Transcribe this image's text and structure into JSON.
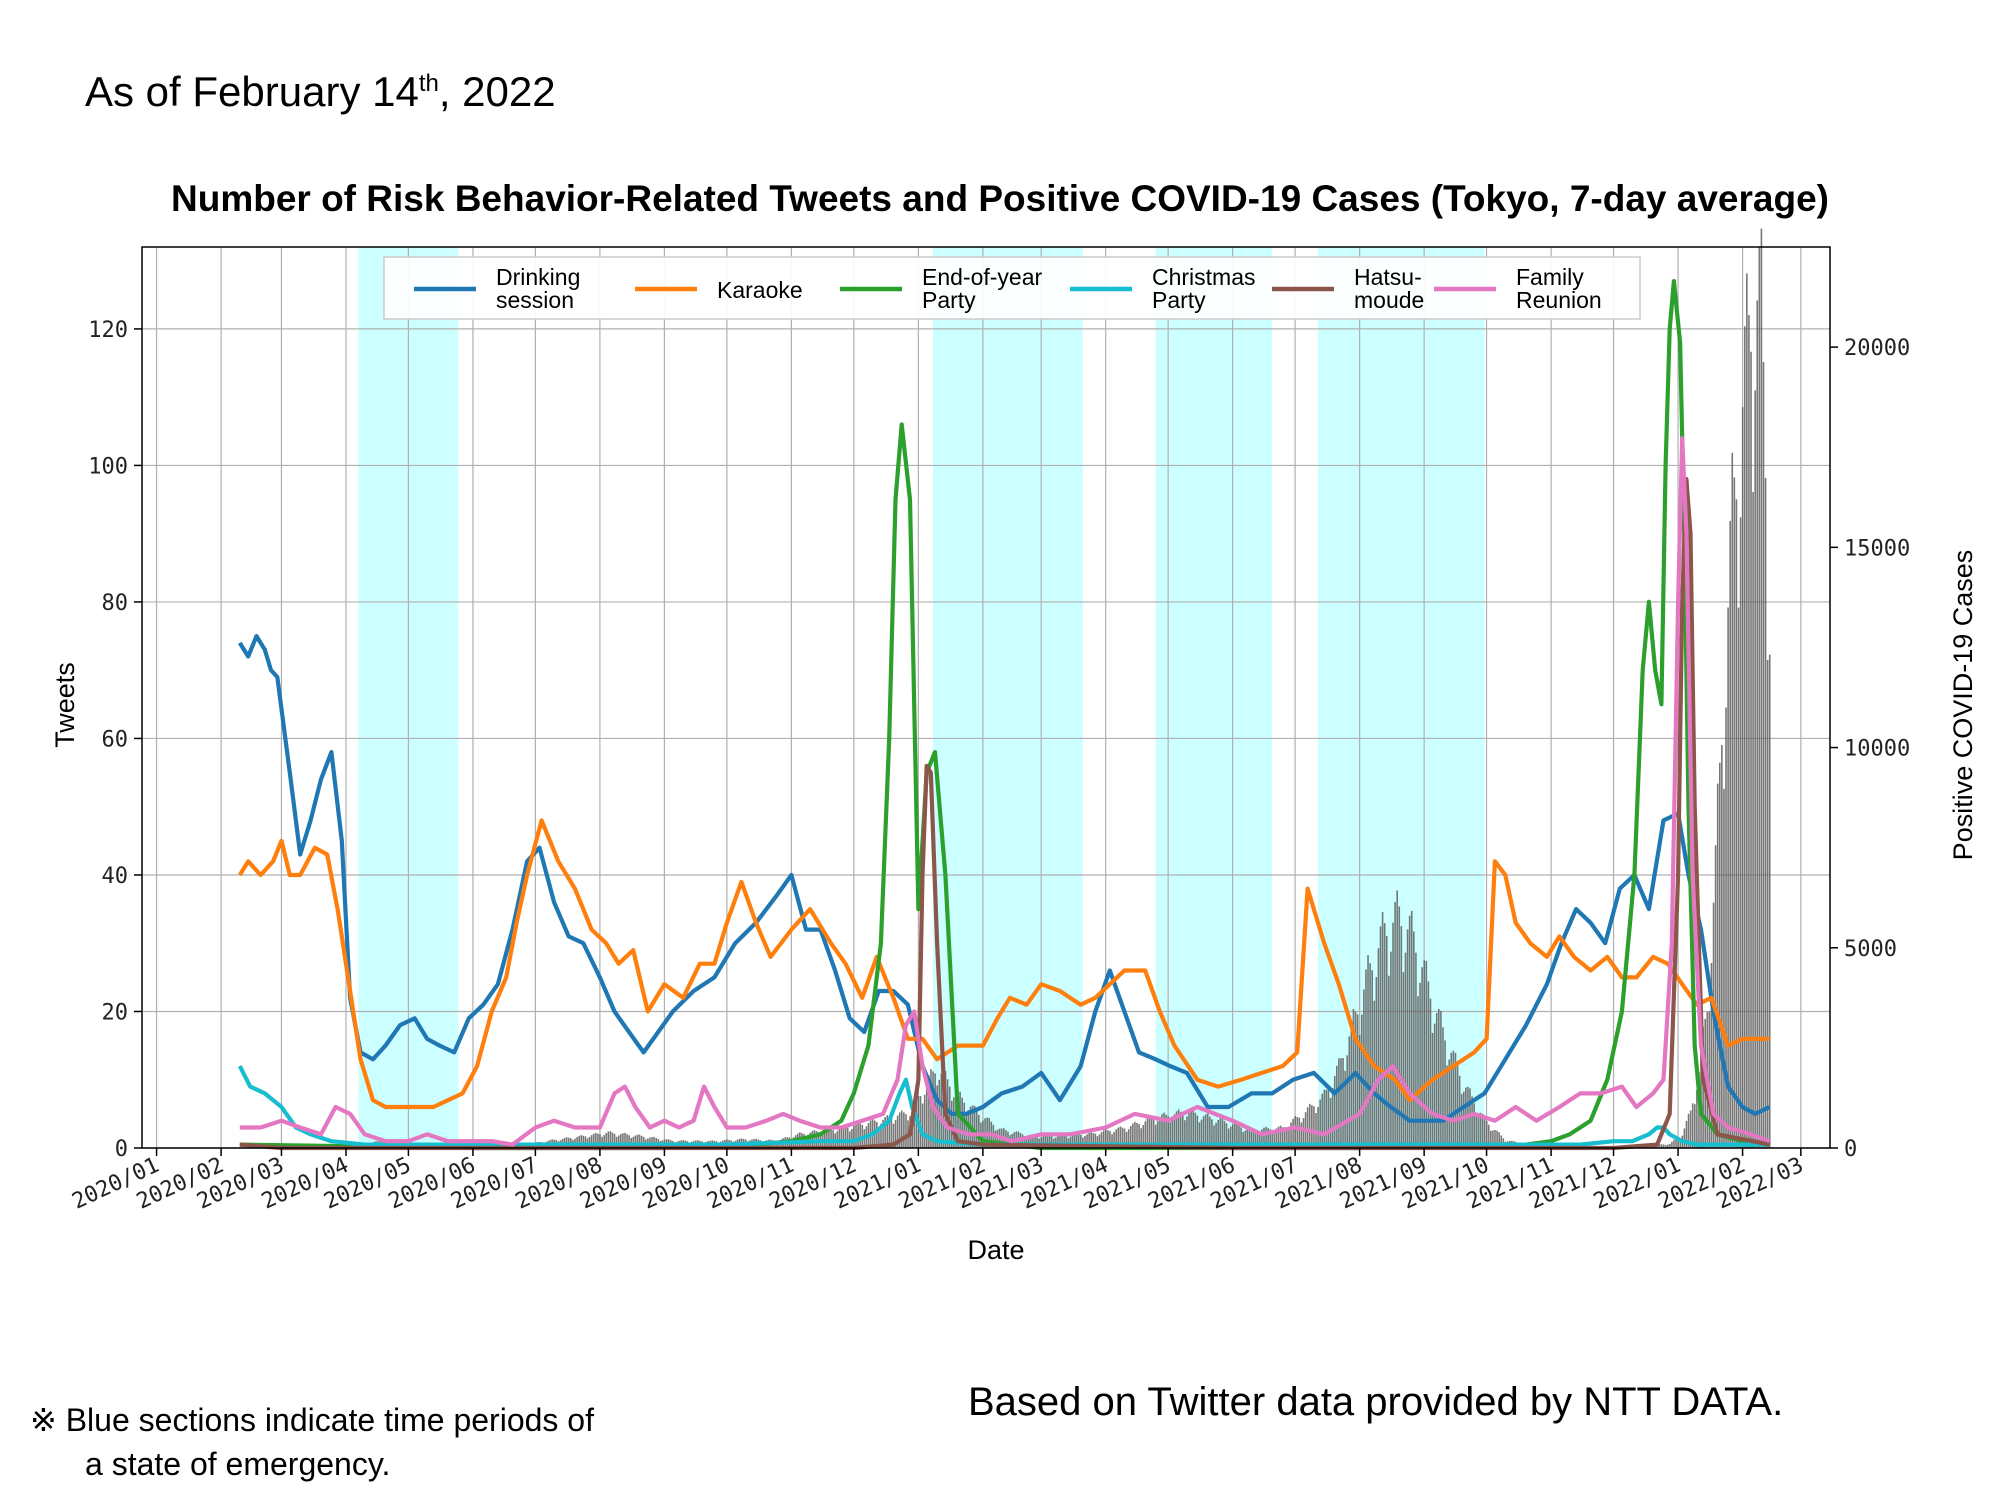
{
  "header": {
    "as_of_prefix": "As of February 14",
    "as_of_sup": "th",
    "as_of_suffix": ", 2022"
  },
  "footer": {
    "note_line1": "※ Blue sections indicate time periods of",
    "note_line2": "a state of emergency.",
    "source": "Based on Twitter data provided by NTT DATA."
  },
  "chart_data": {
    "type": "line",
    "title": "Number of Risk Behavior-Related Tweets and Positive COVID-19 Cases (Tokyo, 7-day average)",
    "xlabel": "Date",
    "ylabel": "Tweets",
    "y2label": "Positive COVID-19 Cases",
    "ylim": [
      0,
      132
    ],
    "y2lim": [
      0,
      22500
    ],
    "xlim": [
      "2019-12-25",
      "2022-03-15"
    ],
    "x_ticks": [
      "2020/01",
      "2020/02",
      "2020/03",
      "2020/04",
      "2020/05",
      "2020/06",
      "2020/07",
      "2020/08",
      "2020/09",
      "2020/10",
      "2020/11",
      "2020/12",
      "2021/01",
      "2021/02",
      "2021/03",
      "2021/04",
      "2021/05",
      "2021/06",
      "2021/07",
      "2021/08",
      "2021/09",
      "2021/10",
      "2021/11",
      "2021/12",
      "2022/01",
      "2022/02",
      "2022/03"
    ],
    "y_ticks": [
      0,
      20,
      40,
      60,
      80,
      100,
      120
    ],
    "y2_ticks": [
      0,
      5000,
      10000,
      15000,
      20000
    ],
    "grid": true,
    "legend_position": "top",
    "emergency_periods": [
      [
        "2020-04-07",
        "2020-05-25"
      ],
      [
        "2021-01-08",
        "2021-03-21"
      ],
      [
        "2021-04-25",
        "2021-06-20"
      ],
      [
        "2021-07-12",
        "2021-09-30"
      ]
    ],
    "series": [
      {
        "name": "Drinking\nsession",
        "color": "#1f77b4",
        "x": [
          "2020-02-10",
          "2020-02-14",
          "2020-02-18",
          "2020-02-22",
          "2020-02-25",
          "2020-02-28",
          "2020-03-05",
          "2020-03-10",
          "2020-03-15",
          "2020-03-20",
          "2020-03-25",
          "2020-03-30",
          "2020-04-03",
          "2020-04-08",
          "2020-04-14",
          "2020-04-20",
          "2020-04-27",
          "2020-05-04",
          "2020-05-10",
          "2020-05-16",
          "2020-05-23",
          "2020-05-30",
          "2020-06-06",
          "2020-06-13",
          "2020-06-20",
          "2020-06-27",
          "2020-07-03",
          "2020-07-10",
          "2020-07-17",
          "2020-07-24",
          "2020-08-01",
          "2020-08-08",
          "2020-08-15",
          "2020-08-22",
          "2020-08-29",
          "2020-09-05",
          "2020-09-15",
          "2020-09-25",
          "2020-10-05",
          "2020-10-15",
          "2020-10-25",
          "2020-11-01",
          "2020-11-08",
          "2020-11-15",
          "2020-11-22",
          "2020-11-29",
          "2020-12-06",
          "2020-12-13",
          "2020-12-20",
          "2020-12-27",
          "2021-01-03",
          "2021-01-10",
          "2021-01-17",
          "2021-01-24",
          "2021-02-01",
          "2021-02-10",
          "2021-02-20",
          "2021-03-01",
          "2021-03-10",
          "2021-03-20",
          "2021-03-27",
          "2021-04-03",
          "2021-04-10",
          "2021-04-17",
          "2021-04-25",
          "2021-05-02",
          "2021-05-10",
          "2021-05-20",
          "2021-05-30",
          "2021-06-10",
          "2021-06-20",
          "2021-06-30",
          "2021-07-10",
          "2021-07-20",
          "2021-07-30",
          "2021-08-08",
          "2021-08-16",
          "2021-08-25",
          "2021-09-01",
          "2021-09-10",
          "2021-09-20",
          "2021-09-30",
          "2021-10-10",
          "2021-10-20",
          "2021-10-30",
          "2021-11-06",
          "2021-11-13",
          "2021-11-20",
          "2021-11-27",
          "2021-12-04",
          "2021-12-11",
          "2021-12-18",
          "2021-12-25",
          "2022-01-01",
          "2022-01-06",
          "2022-01-12",
          "2022-01-18",
          "2022-01-25",
          "2022-02-01",
          "2022-02-07",
          "2022-02-14"
        ],
        "values": [
          74,
          72,
          75,
          73,
          70,
          69,
          55,
          43,
          48,
          54,
          58,
          45,
          22,
          14,
          13,
          15,
          18,
          19,
          16,
          15,
          14,
          19,
          21,
          24,
          32,
          42,
          44,
          36,
          31,
          30,
          25,
          20,
          17,
          14,
          17,
          20,
          23,
          25,
          30,
          33,
          37,
          40,
          32,
          32,
          26,
          19,
          17,
          23,
          23,
          21,
          12,
          7,
          5,
          5,
          6,
          8,
          9,
          11,
          7,
          12,
          20,
          26,
          20,
          14,
          13,
          12,
          11,
          6,
          6,
          8,
          8,
          10,
          11,
          8,
          11,
          8,
          6,
          4,
          4,
          4,
          6,
          8,
          13,
          18,
          24,
          30,
          35,
          33,
          30,
          38,
          40,
          35,
          48,
          49,
          40,
          32,
          20,
          9,
          6,
          5,
          6
        ]
      },
      {
        "name": "Karaoke",
        "color": "#ff7f0e",
        "x": [
          "2020-02-10",
          "2020-02-14",
          "2020-02-20",
          "2020-02-26",
          "2020-03-01",
          "2020-03-05",
          "2020-03-10",
          "2020-03-17",
          "2020-03-23",
          "2020-03-28",
          "2020-04-03",
          "2020-04-08",
          "2020-04-14",
          "2020-04-20",
          "2020-04-27",
          "2020-05-05",
          "2020-05-13",
          "2020-05-20",
          "2020-05-27",
          "2020-06-03",
          "2020-06-10",
          "2020-06-17",
          "2020-06-22",
          "2020-06-27",
          "2020-07-04",
          "2020-07-12",
          "2020-07-20",
          "2020-07-28",
          "2020-08-04",
          "2020-08-10",
          "2020-08-17",
          "2020-08-24",
          "2020-09-01",
          "2020-09-10",
          "2020-09-18",
          "2020-09-25",
          "2020-10-01",
          "2020-10-08",
          "2020-10-15",
          "2020-10-22",
          "2020-11-01",
          "2020-11-10",
          "2020-11-20",
          "2020-11-27",
          "2020-12-05",
          "2020-12-12",
          "2020-12-20",
          "2020-12-27",
          "2021-01-03",
          "2021-01-10",
          "2021-01-20",
          "2021-02-01",
          "2021-02-08",
          "2021-02-14",
          "2021-02-22",
          "2021-03-01",
          "2021-03-10",
          "2021-03-20",
          "2021-03-27",
          "2021-04-03",
          "2021-04-10",
          "2021-04-20",
          "2021-04-27",
          "2021-05-04",
          "2021-05-15",
          "2021-05-25",
          "2021-06-05",
          "2021-06-15",
          "2021-06-25",
          "2021-07-02",
          "2021-07-07",
          "2021-07-15",
          "2021-07-22",
          "2021-07-30",
          "2021-08-08",
          "2021-08-18",
          "2021-08-25",
          "2021-09-05",
          "2021-09-15",
          "2021-09-25",
          "2021-10-01",
          "2021-10-05",
          "2021-10-10",
          "2021-10-15",
          "2021-10-22",
          "2021-10-30",
          "2021-11-05",
          "2021-11-12",
          "2021-11-20",
          "2021-11-28",
          "2021-12-05",
          "2021-12-12",
          "2021-12-20",
          "2021-12-27",
          "2022-01-03",
          "2022-01-10",
          "2022-01-17",
          "2022-01-25",
          "2022-02-01",
          "2022-02-07",
          "2022-02-14"
        ],
        "values": [
          40,
          42,
          40,
          42,
          45,
          40,
          40,
          44,
          43,
          35,
          23,
          13,
          7,
          6,
          6,
          6,
          6,
          7,
          8,
          12,
          20,
          25,
          33,
          40,
          48,
          42,
          38,
          32,
          30,
          27,
          29,
          20,
          24,
          22,
          27,
          27,
          33,
          39,
          33,
          28,
          32,
          35,
          30,
          27,
          22,
          28,
          22,
          16,
          16,
          13,
          15,
          15,
          19,
          22,
          21,
          24,
          23,
          21,
          22,
          24,
          26,
          26,
          20,
          15,
          10,
          9,
          10,
          11,
          12,
          14,
          38,
          30,
          24,
          16,
          12,
          10,
          7,
          10,
          12,
          14,
          16,
          42,
          40,
          33,
          30,
          28,
          31,
          28,
          26,
          28,
          25,
          25,
          28,
          27,
          24,
          21,
          22,
          15,
          16,
          16,
          16
        ]
      },
      {
        "name": "End-of-year\nParty",
        "color": "#2ca02c",
        "x": [
          "2020-02-10",
          "2020-06-01",
          "2020-09-01",
          "2020-10-15",
          "2020-11-01",
          "2020-11-15",
          "2020-11-25",
          "2020-12-01",
          "2020-12-08",
          "2020-12-14",
          "2020-12-18",
          "2020-12-21",
          "2020-12-24",
          "2020-12-28",
          "2021-01-01",
          "2021-01-05",
          "2021-01-09",
          "2021-01-14",
          "2021-01-20",
          "2021-02-01",
          "2021-03-01",
          "2021-05-01",
          "2021-08-01",
          "2021-10-01",
          "2021-10-20",
          "2021-11-01",
          "2021-11-10",
          "2021-11-20",
          "2021-11-28",
          "2021-12-05",
          "2021-12-11",
          "2021-12-15",
          "2021-12-18",
          "2021-12-21",
          "2021-12-24",
          "2021-12-26",
          "2021-12-28",
          "2021-12-30",
          "2022-01-02",
          "2022-01-04",
          "2022-01-06",
          "2022-01-09",
          "2022-01-12",
          "2022-01-20",
          "2022-02-01",
          "2022-02-14"
        ],
        "values": [
          0.5,
          0,
          0,
          0.5,
          1,
          2,
          4,
          8,
          15,
          30,
          60,
          95,
          106,
          95,
          35,
          55,
          58,
          40,
          5,
          1,
          0,
          0,
          0,
          0.5,
          0.5,
          1,
          2,
          4,
          10,
          20,
          40,
          70,
          80,
          70,
          65,
          100,
          120,
          127,
          118,
          90,
          50,
          15,
          5,
          2,
          1,
          0.5
        ]
      },
      {
        "name": "Christmas\nParty",
        "color": "#17becf",
        "x": [
          "2020-02-10",
          "2020-02-15",
          "2020-02-22",
          "2020-03-01",
          "2020-03-08",
          "2020-03-15",
          "2020-03-25",
          "2020-04-10",
          "2020-06-01",
          "2020-10-01",
          "2020-11-15",
          "2020-12-01",
          "2020-12-10",
          "2020-12-18",
          "2020-12-23",
          "2020-12-26",
          "2020-12-29",
          "2021-01-03",
          "2021-01-10",
          "2021-02-01",
          "2021-06-01",
          "2021-10-01",
          "2021-11-15",
          "2021-12-01",
          "2021-12-10",
          "2021-12-18",
          "2021-12-22",
          "2021-12-25",
          "2021-12-28",
          "2022-01-03",
          "2022-01-10",
          "2022-02-14"
        ],
        "values": [
          12,
          9,
          8,
          6,
          3,
          2,
          1,
          0.5,
          0.5,
          0.5,
          1,
          1,
          2,
          4,
          8,
          10,
          6,
          2,
          1,
          0.5,
          0.5,
          0.5,
          0.5,
          1,
          1,
          2,
          3,
          3,
          2,
          1,
          0.5,
          0.5
        ]
      },
      {
        "name": "Hatsu-\nmoude",
        "color": "#8c564b",
        "x": [
          "2020-02-10",
          "2020-03-01",
          "2020-06-01",
          "2020-12-01",
          "2020-12-20",
          "2020-12-28",
          "2021-01-01",
          "2021-01-03",
          "2021-01-05",
          "2021-01-07",
          "2021-01-10",
          "2021-01-14",
          "2021-01-20",
          "2021-02-01",
          "2021-06-01",
          "2021-12-01",
          "2021-12-22",
          "2021-12-28",
          "2022-01-01",
          "2022-01-03",
          "2022-01-05",
          "2022-01-07",
          "2022-01-09",
          "2022-01-13",
          "2022-01-20",
          "2022-02-14"
        ],
        "values": [
          0.5,
          0,
          0,
          0,
          0.5,
          2,
          10,
          40,
          56,
          55,
          30,
          5,
          1,
          0.5,
          0,
          0,
          0.5,
          5,
          40,
          80,
          98,
          90,
          50,
          10,
          2,
          0.5
        ]
      },
      {
        "name": "Family\nReunion",
        "color": "#e377c2",
        "x": [
          "2020-02-10",
          "2020-02-20",
          "2020-03-01",
          "2020-03-10",
          "2020-03-20",
          "2020-03-27",
          "2020-04-03",
          "2020-04-10",
          "2020-04-20",
          "2020-05-01",
          "2020-05-10",
          "2020-05-20",
          "2020-06-01",
          "2020-06-10",
          "2020-06-20",
          "2020-07-01",
          "2020-07-10",
          "2020-07-20",
          "2020-08-01",
          "2020-08-08",
          "2020-08-13",
          "2020-08-18",
          "2020-08-25",
          "2020-09-01",
          "2020-09-08",
          "2020-09-15",
          "2020-09-20",
          "2020-09-25",
          "2020-10-01",
          "2020-10-10",
          "2020-10-20",
          "2020-10-28",
          "2020-11-05",
          "2020-11-15",
          "2020-11-25",
          "2020-12-05",
          "2020-12-15",
          "2020-12-22",
          "2020-12-26",
          "2020-12-30",
          "2021-01-03",
          "2021-01-08",
          "2021-01-15",
          "2021-01-25",
          "2021-02-05",
          "2021-02-15",
          "2021-03-01",
          "2021-03-15",
          "2021-04-01",
          "2021-04-15",
          "2021-05-01",
          "2021-05-15",
          "2021-06-01",
          "2021-06-15",
          "2021-07-01",
          "2021-07-15",
          "2021-08-01",
          "2021-08-10",
          "2021-08-17",
          "2021-08-25",
          "2021-09-05",
          "2021-09-15",
          "2021-09-25",
          "2021-10-05",
          "2021-10-15",
          "2021-10-25",
          "2021-11-05",
          "2021-11-15",
          "2021-11-25",
          "2021-12-05",
          "2021-12-12",
          "2021-12-20",
          "2021-12-25",
          "2021-12-29",
          "2022-01-01",
          "2022-01-03",
          "2022-01-05",
          "2022-01-08",
          "2022-01-12",
          "2022-01-18",
          "2022-01-25",
          "2022-02-05",
          "2022-02-14"
        ],
        "values": [
          3,
          3,
          4,
          3,
          2,
          6,
          5,
          2,
          1,
          1,
          2,
          1,
          1,
          1,
          0.5,
          3,
          4,
          3,
          3,
          8,
          9,
          6,
          3,
          4,
          3,
          4,
          9,
          6,
          3,
          3,
          4,
          5,
          4,
          3,
          3,
          4,
          5,
          10,
          18,
          20,
          12,
          6,
          3,
          2,
          2,
          1,
          2,
          2,
          3,
          5,
          4,
          6,
          4,
          2,
          3,
          2,
          5,
          10,
          12,
          8,
          5,
          4,
          5,
          4,
          6,
          4,
          6,
          8,
          8,
          9,
          6,
          8,
          10,
          30,
          80,
          104,
          90,
          40,
          15,
          5,
          3,
          2,
          1
        ]
      },
      {
        "name": "Positive COVID-19 Cases",
        "color": "#5f5f5f",
        "axis": "right",
        "x": [
          "2020-02-10",
          "2020-03-15",
          "2020-04-05",
          "2020-04-15",
          "2020-04-25",
          "2020-05-10",
          "2020-06-01",
          "2020-06-25",
          "2020-07-10",
          "2020-07-25",
          "2020-08-05",
          "2020-08-20",
          "2020-09-05",
          "2020-09-25",
          "2020-10-10",
          "2020-10-25",
          "2020-11-05",
          "2020-11-20",
          "2020-12-01",
          "2020-12-15",
          "2020-12-28",
          "2021-01-05",
          "2021-01-10",
          "2021-01-20",
          "2021-01-30",
          "2021-02-10",
          "2021-02-25",
          "2021-03-10",
          "2021-03-25",
          "2021-04-10",
          "2021-04-25",
          "2021-05-10",
          "2021-05-25",
          "2021-06-10",
          "2021-06-25",
          "2021-07-05",
          "2021-07-15",
          "2021-07-22",
          "2021-07-29",
          "2021-08-05",
          "2021-08-13",
          "2021-08-20",
          "2021-08-27",
          "2021-09-03",
          "2021-09-10",
          "2021-09-20",
          "2021-09-30",
          "2021-10-10",
          "2021-10-25",
          "2021-11-15",
          "2021-12-10",
          "2021-12-28",
          "2022-01-03",
          "2022-01-07",
          "2022-01-11",
          "2022-01-15",
          "2022-01-19",
          "2022-01-23",
          "2022-01-27",
          "2022-02-01",
          "2022-02-04",
          "2022-02-07",
          "2022-02-10",
          "2022-02-14"
        ],
        "values": [
          0,
          20,
          80,
          150,
          180,
          60,
          20,
          80,
          200,
          300,
          380,
          300,
          180,
          170,
          220,
          180,
          350,
          450,
          550,
          700,
          900,
          1600,
          2000,
          1300,
          850,
          450,
          300,
          300,
          350,
          500,
          750,
          900,
          700,
          450,
          500,
          850,
          1300,
          2000,
          3100,
          4300,
          5400,
          5800,
          5200,
          4000,
          2900,
          1600,
          700,
          200,
          30,
          20,
          50,
          100,
          350,
          900,
          1900,
          3500,
          7000,
          11500,
          15500,
          18500,
          20000,
          21500,
          20500,
          14000
        ]
      }
    ]
  }
}
